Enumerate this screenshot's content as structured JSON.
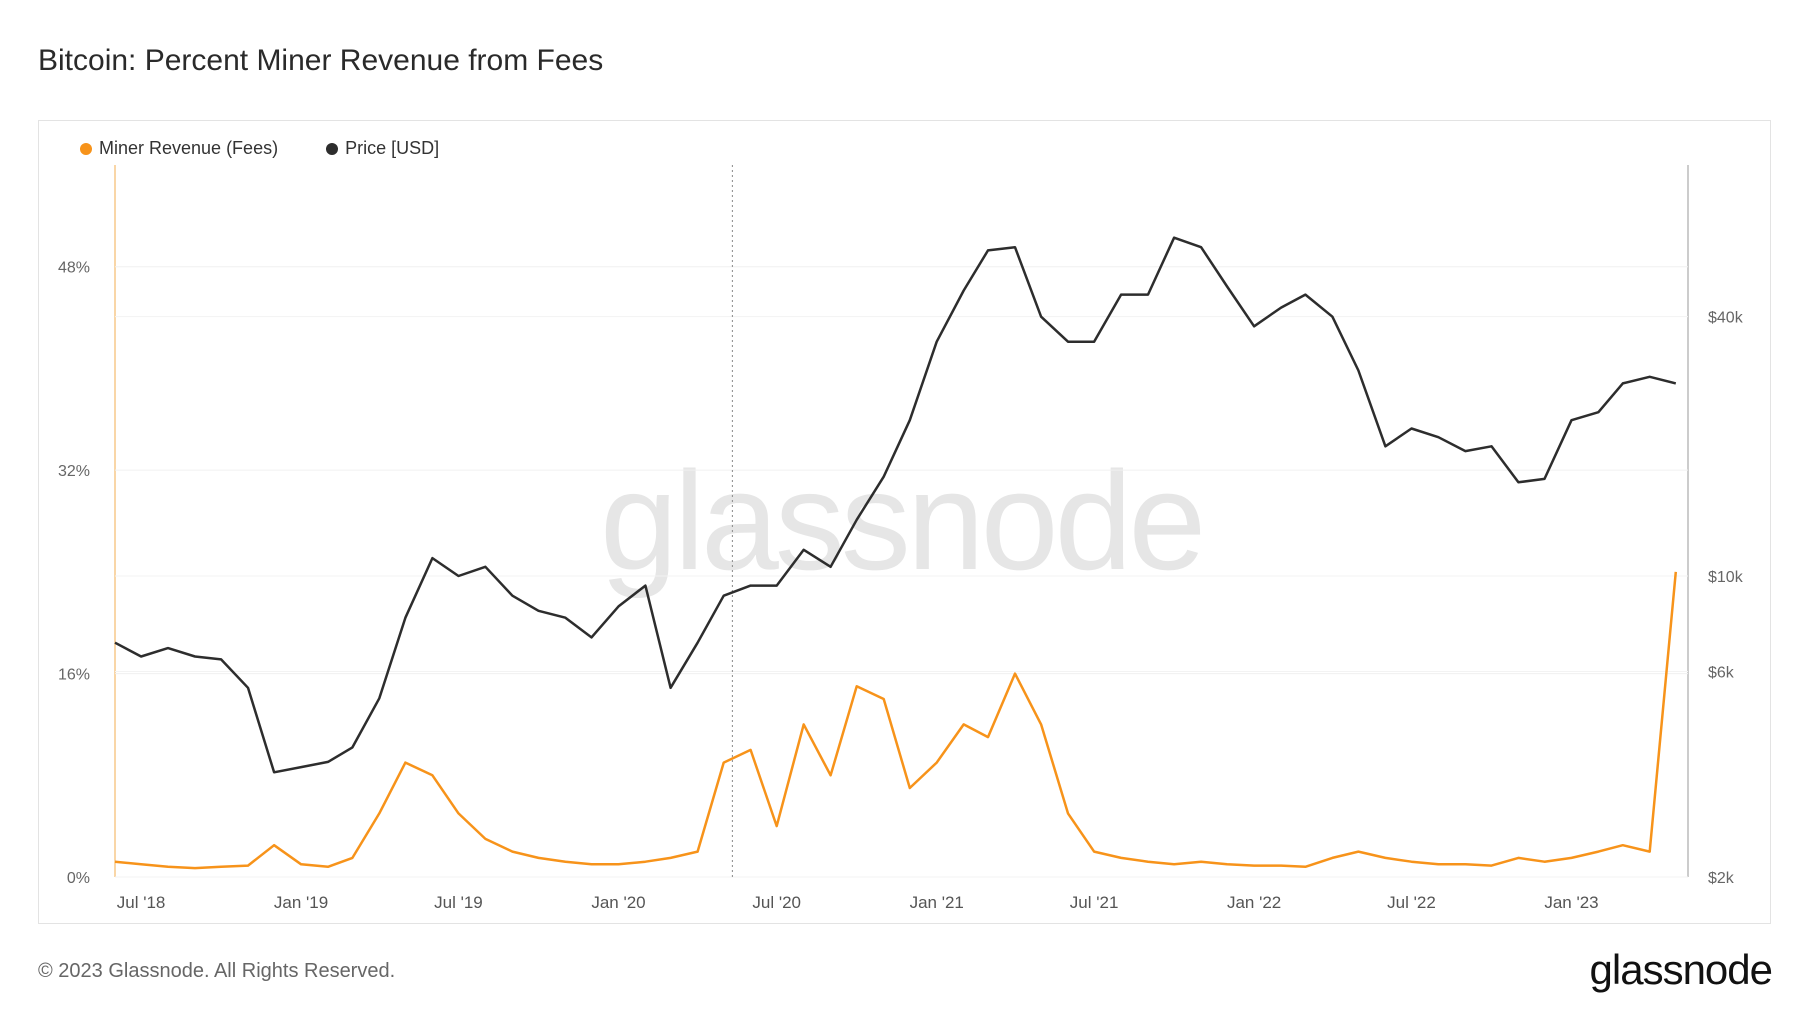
{
  "title": "Bitcoin: Percent Miner Revenue from Fees",
  "legend": [
    {
      "label": "Miner Revenue (Fees)",
      "color": "#f7931a"
    },
    {
      "label": "Price [USD]",
      "color": "#2d2d2d"
    }
  ],
  "watermark": "glassnode",
  "footer": "© 2023 Glassnode. All Rights Reserved.",
  "brand": "glassnode",
  "chart_data": {
    "type": "line",
    "x": [
      "2018-06-01",
      "2018-07-01",
      "2018-08-01",
      "2018-09-01",
      "2018-10-01",
      "2018-11-01",
      "2018-12-01",
      "2019-01-01",
      "2019-02-01",
      "2019-03-01",
      "2019-04-01",
      "2019-05-01",
      "2019-06-01",
      "2019-07-01",
      "2019-08-01",
      "2019-09-01",
      "2019-10-01",
      "2019-11-01",
      "2019-12-01",
      "2020-01-01",
      "2020-02-01",
      "2020-03-01",
      "2020-04-01",
      "2020-05-01",
      "2020-06-01",
      "2020-07-01",
      "2020-08-01",
      "2020-09-01",
      "2020-10-01",
      "2020-11-01",
      "2020-12-01",
      "2021-01-01",
      "2021-02-01",
      "2021-03-01",
      "2021-04-01",
      "2021-05-01",
      "2021-06-01",
      "2021-07-01",
      "2021-08-01",
      "2021-09-01",
      "2021-10-01",
      "2021-11-01",
      "2021-12-01",
      "2022-01-01",
      "2022-02-01",
      "2022-03-01",
      "2022-04-01",
      "2022-05-01",
      "2022-06-01",
      "2022-07-01",
      "2022-08-01",
      "2022-09-01",
      "2022-10-01",
      "2022-11-01",
      "2022-12-01",
      "2023-01-01",
      "2023-02-01",
      "2023-03-01",
      "2023-04-01",
      "2023-05-01"
    ],
    "series": [
      {
        "name": "Miner Revenue (Fees)",
        "axis": "left",
        "color": "#f7931a",
        "values": [
          1.2,
          1.0,
          0.8,
          0.7,
          0.8,
          0.9,
          2.5,
          1.0,
          0.8,
          1.5,
          5.0,
          9.0,
          8.0,
          5.0,
          3.0,
          2.0,
          1.5,
          1.2,
          1.0,
          1.0,
          1.2,
          1.5,
          2.0,
          9.0,
          10.0,
          4.0,
          12.0,
          8.0,
          15.0,
          14.0,
          7.0,
          9.0,
          12.0,
          11.0,
          16.0,
          12.0,
          5.0,
          2.0,
          1.5,
          1.2,
          1.0,
          1.2,
          1.0,
          0.9,
          0.9,
          0.8,
          1.5,
          2.0,
          1.5,
          1.2,
          1.0,
          1.0,
          0.9,
          1.5,
          1.2,
          1.5,
          2.0,
          2.5,
          2.0,
          24.0
        ]
      },
      {
        "name": "Price [USD]",
        "axis": "right",
        "color": "#2d2d2d",
        "values": [
          7000,
          6500,
          6800,
          6500,
          6400,
          5500,
          3500,
          3600,
          3700,
          4000,
          5200,
          8000,
          11000,
          10000,
          10500,
          9000,
          8300,
          8000,
          7200,
          8500,
          9500,
          5500,
          7000,
          9000,
          9500,
          9500,
          11500,
          10500,
          13500,
          17000,
          23000,
          35000,
          46000,
          57000,
          58000,
          40000,
          35000,
          35000,
          45000,
          45000,
          61000,
          58000,
          47000,
          38000,
          42000,
          45000,
          40000,
          30000,
          20000,
          22000,
          21000,
          19500,
          20000,
          16500,
          16800,
          23000,
          24000,
          28000,
          29000,
          28000
        ]
      }
    ],
    "x_tick_labels": [
      "Jul '18",
      "Jan '19",
      "Jul '19",
      "Jan '20",
      "Jul '20",
      "Jan '21",
      "Jul '21",
      "Jan '22",
      "Jul '22",
      "Jan '23"
    ],
    "y_left_tick_labels": [
      "0%",
      "16%",
      "32%",
      "48%"
    ],
    "y_left_ticks": [
      0,
      16,
      32,
      48
    ],
    "y_left_range": [
      0,
      56
    ],
    "y_right_tick_labels": [
      "$2k",
      "$6k",
      "$10k",
      "$40k"
    ],
    "y_right_ticks": [
      2000,
      6000,
      10000,
      40000
    ],
    "y_right_range": [
      2000,
      90000
    ],
    "y_right_scale": "log",
    "grid": true
  }
}
